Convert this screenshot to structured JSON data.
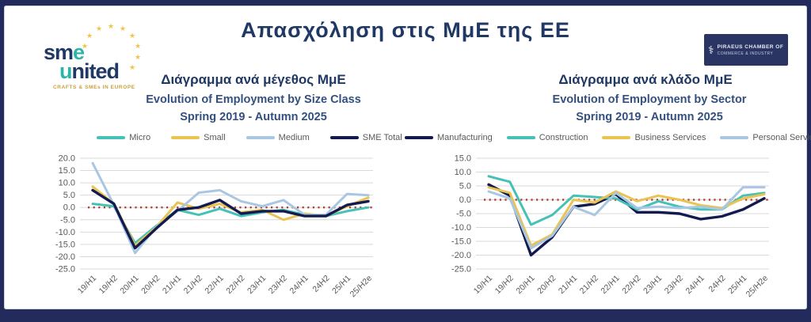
{
  "colors": {
    "frame": "#232A5C",
    "panel": "#FFFFFF",
    "title_navy": "#1F3864",
    "subtitle_navy": "#33507E",
    "axis_text": "#595959",
    "gridline": "#D9D9D9",
    "zero_line_red": "#B5402F",
    "teal": "#45C1B5",
    "gold": "#EAC451",
    "light_blue": "#A9C7E2",
    "series_navy": "#131A4F",
    "star_gold": "#F2C24B"
  },
  "header": {
    "title": "Απασχόληση στις ΜμΕ της ΕΕ"
  },
  "logos": {
    "sme_united": {
      "part1": "sm",
      "part2": "e",
      "part3": "u",
      "part4": "nited",
      "tagline": "CRAFTS & SMEs IN EUROPE"
    },
    "piraeus": {
      "icon": "caduceus-icon",
      "symbol": "⚕",
      "line1": "PIRAEUS   CHAMBER OF",
      "line2": "COMMERCE  &  INDUSTRY"
    }
  },
  "chart_data": [
    {
      "type": "line",
      "greek_title": "Διάγραμμα ανά μέγεθος ΜμΕ",
      "title_line1": "Evolution of Employment by Size Class",
      "title_line2": "Spring 2019 - Autumn 2025",
      "legend_position": "top",
      "grid": true,
      "zero_line": true,
      "ylim": [
        -25,
        20
      ],
      "ytick_step": 5,
      "categories": [
        "19/H1",
        "19/H2",
        "20/H1",
        "20/H2",
        "21/H1",
        "21/H2",
        "22/H1",
        "22/H2",
        "23/H1",
        "23/H2",
        "24/H1",
        "24H2",
        "25/H1",
        "25/H2e"
      ],
      "series": [
        {
          "name": "Micro",
          "color": "#45C1B5",
          "values": [
            1.5,
            0.5,
            -14.5,
            -7.5,
            -1.0,
            -3.0,
            -0.5,
            -3.5,
            -2.0,
            -1.0,
            -3.0,
            -3.5,
            -1.5,
            0.0
          ]
        },
        {
          "name": "Small",
          "color": "#EAC451",
          "values": [
            8.5,
            1.5,
            -15.5,
            -8.0,
            2.0,
            -0.5,
            1.5,
            -2.0,
            -1.0,
            -5.0,
            -2.5,
            -3.5,
            0.5,
            4.0
          ]
        },
        {
          "name": "Medium",
          "color": "#A9C7E2",
          "values": [
            18.0,
            1.0,
            -18.5,
            -8.0,
            -1.5,
            6.0,
            7.0,
            2.5,
            0.5,
            3.0,
            -3.0,
            -3.0,
            5.5,
            5.0
          ]
        },
        {
          "name": "SME Total",
          "color": "#131A4F",
          "values": [
            7.0,
            1.5,
            -16.5,
            -8.5,
            -1.0,
            0.0,
            3.0,
            -2.5,
            -1.5,
            -1.5,
            -3.5,
            -3.5,
            1.0,
            2.5
          ]
        }
      ]
    },
    {
      "type": "line",
      "greek_title": "Διάγραμμα ανά κλάδο ΜμΕ",
      "title_line1": "Evolution of Employment by Sector",
      "title_line2": "Spring 2019 - Autumn 2025",
      "legend_position": "top",
      "grid": true,
      "zero_line": true,
      "ylim": [
        -25,
        15
      ],
      "ytick_step": 5,
      "categories": [
        "19/H1",
        "19/H2",
        "20/H1",
        "20/H2",
        "21/H1",
        "21/H2",
        "22/H1",
        "22/H2",
        "23/H1",
        "23/H2",
        "24/H1",
        "24H2",
        "25/H1",
        "25/H2e"
      ],
      "series": [
        {
          "name": "Manufacturing",
          "color": "#131A4F",
          "values": [
            5.5,
            1.5,
            -20.0,
            -13.5,
            -2.5,
            -1.5,
            2.0,
            -4.5,
            -4.5,
            -5.0,
            -7.0,
            -6.0,
            -3.5,
            0.5
          ]
        },
        {
          "name": "Construction",
          "color": "#45C1B5",
          "values": [
            8.5,
            6.5,
            -9.0,
            -5.5,
            1.5,
            1.0,
            0.5,
            -3.5,
            -0.5,
            -2.5,
            -3.5,
            -3.5,
            1.5,
            2.5
          ]
        },
        {
          "name": "Business Services",
          "color": "#EAC451",
          "values": [
            4.5,
            2.5,
            -16.5,
            -12.5,
            0.0,
            -1.0,
            3.0,
            -0.5,
            1.5,
            0.0,
            -2.0,
            -3.0,
            0.5,
            2.0
          ]
        },
        {
          "name": "Personal Services",
          "color": "#A9C7E2",
          "values": [
            3.0,
            0.5,
            -17.5,
            -13.0,
            -2.5,
            -5.5,
            2.5,
            -3.0,
            -2.5,
            -3.0,
            -2.5,
            -3.5,
            4.5,
            4.5
          ]
        }
      ]
    }
  ]
}
